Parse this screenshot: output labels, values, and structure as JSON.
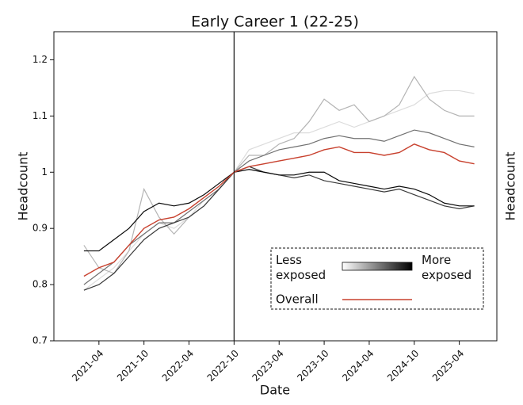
{
  "chart_data": {
    "type": "line",
    "title": "Early Career 1 (22-25)",
    "xlabel": "Date",
    "ylabel": "Headcount",
    "x": [
      "2021-02",
      "2021-04",
      "2021-06",
      "2021-08",
      "2021-10",
      "2021-12",
      "2022-02",
      "2022-04",
      "2022-06",
      "2022-08",
      "2022-10",
      "2022-12",
      "2023-02",
      "2023-04",
      "2023-06",
      "2023-08",
      "2023-10",
      "2023-12",
      "2024-02",
      "2024-04",
      "2024-06",
      "2024-08",
      "2024-10",
      "2024-12",
      "2025-02",
      "2025-04",
      "2025-06"
    ],
    "xlim": [
      "2020-10",
      "2025-09"
    ],
    "xticks": [
      "2021-04",
      "2021-10",
      "2022-04",
      "2022-10",
      "2023-04",
      "2023-10",
      "2024-04",
      "2024-10",
      "2025-04"
    ],
    "ylim": [
      0.7,
      1.25
    ],
    "yticks": [
      0.7,
      0.8,
      0.9,
      1.0,
      1.1,
      1.2
    ],
    "vline": "2022-10",
    "series": [
      {
        "color": "#dcdcdc",
        "values": [
          0.79,
          0.81,
          0.83,
          0.86,
          0.89,
          0.91,
          0.9,
          0.92,
          0.95,
          0.97,
          1.0,
          1.04,
          1.05,
          1.06,
          1.07,
          1.07,
          1.08,
          1.09,
          1.08,
          1.09,
          1.1,
          1.11,
          1.12,
          1.14,
          1.145,
          1.145,
          1.14
        ]
      },
      {
        "color": "#b4b4b4",
        "values": [
          0.87,
          0.83,
          0.82,
          0.86,
          0.97,
          0.92,
          0.89,
          0.92,
          0.94,
          0.97,
          1.0,
          1.03,
          1.03,
          1.05,
          1.06,
          1.09,
          1.13,
          1.11,
          1.12,
          1.09,
          1.1,
          1.12,
          1.17,
          1.13,
          1.11,
          1.1,
          1.1
        ]
      },
      {
        "color": "#707070",
        "values": [
          0.8,
          0.82,
          0.84,
          0.87,
          0.89,
          0.91,
          0.91,
          0.93,
          0.95,
          0.97,
          1.0,
          1.02,
          1.03,
          1.04,
          1.045,
          1.05,
          1.06,
          1.065,
          1.06,
          1.06,
          1.055,
          1.065,
          1.075,
          1.07,
          1.06,
          1.05,
          1.045
        ]
      },
      {
        "color": "#3a3a3a",
        "values": [
          0.79,
          0.8,
          0.82,
          0.85,
          0.88,
          0.9,
          0.91,
          0.92,
          0.94,
          0.97,
          1.0,
          1.01,
          1.0,
          0.995,
          0.99,
          0.995,
          0.985,
          0.98,
          0.975,
          0.97,
          0.965,
          0.97,
          0.96,
          0.95,
          0.94,
          0.935,
          0.94
        ]
      },
      {
        "color": "#0a0a0a",
        "values": [
          0.86,
          0.86,
          0.88,
          0.9,
          0.93,
          0.945,
          0.94,
          0.945,
          0.96,
          0.98,
          1.0,
          1.005,
          1.0,
          0.995,
          0.995,
          1.0,
          1.0,
          0.985,
          0.98,
          0.975,
          0.97,
          0.975,
          0.97,
          0.96,
          0.945,
          0.94,
          0.94
        ]
      },
      {
        "name": "Overall",
        "color": "#c8412e",
        "values": [
          0.815,
          0.83,
          0.84,
          0.87,
          0.9,
          0.915,
          0.92,
          0.935,
          0.955,
          0.975,
          1.0,
          1.01,
          1.015,
          1.02,
          1.025,
          1.03,
          1.04,
          1.045,
          1.035,
          1.035,
          1.03,
          1.035,
          1.05,
          1.04,
          1.035,
          1.02,
          1.015
        ]
      }
    ],
    "legend": {
      "gradient_labels": [
        "Less exposed",
        "More exposed"
      ]
    }
  }
}
